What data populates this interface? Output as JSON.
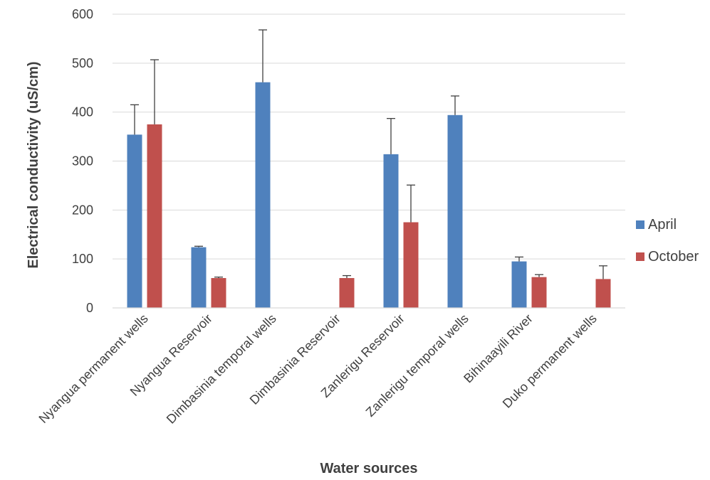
{
  "chart_data": {
    "type": "bar",
    "title": "",
    "xlabel": "Water sources",
    "ylabel": "Electrical conductivity (uS/cm)",
    "ylim": [
      0,
      600
    ],
    "yticks": [
      0,
      100,
      200,
      300,
      400,
      500,
      600
    ],
    "ytick_labels": [
      "0",
      "100",
      "200",
      "300",
      "400",
      "500",
      "600"
    ],
    "grid": true,
    "legend_position": "right",
    "categories": [
      "Nyangua permanent wells",
      "Nyangua Reservoir",
      "Dimbasinia temporal wells",
      "Dimbasinia Reservoir",
      "Zanlerigu Reservoir",
      "Zanlerigu temporal wells",
      "Bihinaayili River",
      "Duko permanent wells"
    ],
    "series": [
      {
        "name": "April",
        "color": "#4F81BD",
        "values": [
          354,
          124,
          461,
          null,
          314,
          394,
          95,
          null
        ],
        "error_upper": [
          415,
          126,
          568,
          null,
          387,
          433,
          104,
          null
        ]
      },
      {
        "name": "October",
        "color": "#C0504D",
        "values": [
          375,
          61,
          null,
          61,
          175,
          null,
          63,
          59
        ],
        "error_upper": [
          507,
          63,
          null,
          66,
          251,
          null,
          68,
          86
        ]
      }
    ]
  }
}
